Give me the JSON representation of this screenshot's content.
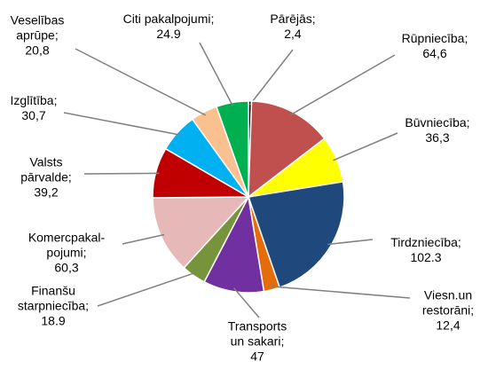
{
  "chart_data": {
    "type": "pie",
    "categories": [
      "Pārējās;",
      "Rūpniecība;",
      "Būvniecība;",
      "Tirdzniecība;",
      "Viesn.un\nrestorāni;",
      "Transports\nun sakari;",
      "Finanšu\nstarpniecība;",
      "Komercpakal-\npojumi;",
      "Valsts\npārvalde;",
      "Izglītība;",
      "Veselības\naprūpe;",
      "Citi pakalpojumi;"
    ],
    "values": [
      2.4,
      64.6,
      36.3,
      102.3,
      12.4,
      47,
      18.9,
      60.3,
      39.2,
      30.7,
      20.8,
      24.9
    ],
    "value_labels": [
      "2,4",
      "64,6",
      "36,3",
      "102.3",
      "12,4",
      "47",
      "18.9",
      "60,3",
      "39,2",
      "30,7",
      "20,8",
      "24.9"
    ],
    "colors": [
      "#000000",
      "#c0504d",
      "#ffff00",
      "#1f497d",
      "#e46c0a",
      "#7030a0",
      "#77933c",
      "#e6b9b8",
      "#c00000",
      "#00b0f0",
      "#fac090",
      "#00b050"
    ]
  }
}
